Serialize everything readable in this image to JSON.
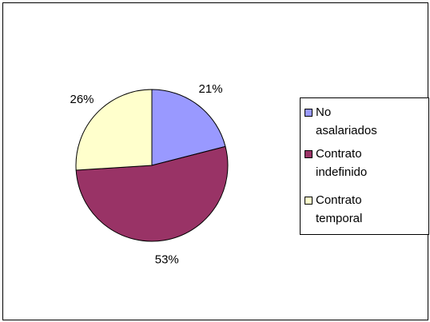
{
  "chart_data": {
    "type": "pie",
    "categories": [
      "No asalariados",
      "Contrato indefinido",
      "Contrato temporal"
    ],
    "values": [
      21,
      53,
      26
    ],
    "value_labels": [
      "21%",
      "53%",
      "26%"
    ],
    "colors": [
      "#9999ff",
      "#993366",
      "#ffffcc"
    ],
    "legend": "right"
  }
}
